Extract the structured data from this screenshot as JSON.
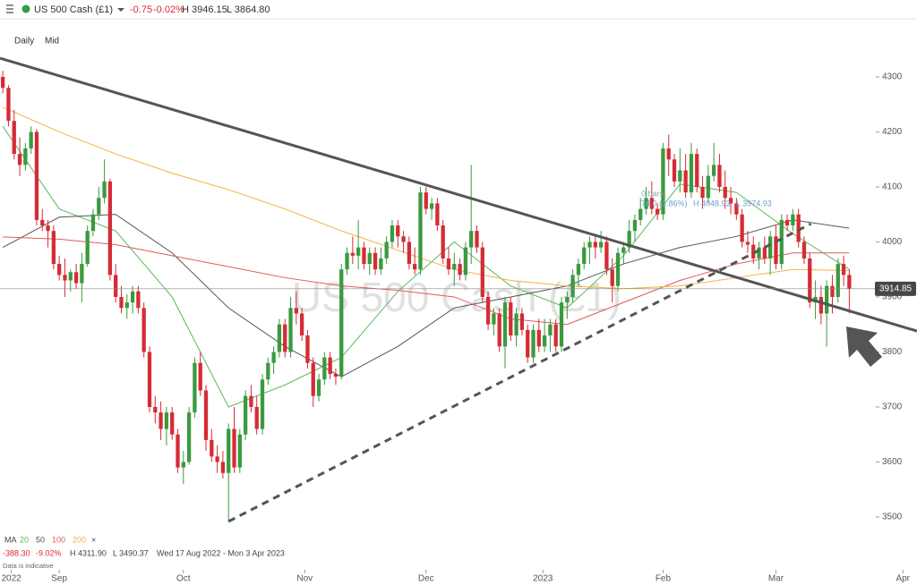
{
  "header": {
    "symbol": "US 500 Cash (£1)",
    "change": "-0.75",
    "change_pct": "-0.02%",
    "high": "H 3946.15",
    "low": "L 3864.80"
  },
  "chart_data": {
    "type": "candlestick",
    "interval": "Daily",
    "price_type": "Mid",
    "watermark": "US 500 Cash (£1)",
    "up_color": "#3a9a3e",
    "down_color": "#d62b35",
    "x": [
      0,
      1,
      2,
      3,
      4,
      5,
      6,
      7,
      8,
      9,
      10,
      11,
      12,
      13,
      14,
      15,
      16,
      17,
      18,
      19,
      20,
      21,
      22,
      23,
      24,
      25,
      26,
      27,
      28,
      29,
      30,
      31,
      32,
      33,
      34,
      35,
      36,
      37,
      38,
      39,
      40,
      41,
      42,
      43,
      44,
      45,
      46,
      47,
      48,
      49,
      50,
      51,
      52,
      53,
      54,
      55,
      56,
      57,
      58,
      59,
      60,
      61,
      62,
      63,
      64,
      65,
      66,
      67,
      68,
      69,
      70,
      71,
      72,
      73,
      74,
      75,
      76,
      77,
      78,
      79,
      80,
      81,
      82,
      83,
      84,
      85,
      86,
      87,
      88,
      89,
      90,
      91,
      92,
      93,
      94,
      95,
      96,
      97,
      98,
      99,
      100,
      101,
      102,
      103,
      104,
      105,
      106,
      107,
      108,
      109,
      110,
      111,
      112,
      113,
      114,
      115,
      116,
      117,
      118,
      119,
      120,
      121,
      122,
      123,
      124,
      125,
      126,
      127,
      128,
      129,
      130,
      131,
      132,
      133,
      134,
      135,
      136,
      137,
      138,
      139,
      140,
      141,
      142,
      143,
      144,
      145,
      146,
      147,
      148,
      149,
      150
    ],
    "open": [
      4300,
      4280,
      4220,
      4160,
      4140,
      4170,
      4200,
      4040,
      4030,
      4020,
      3960,
      3940,
      3930,
      3945,
      3925,
      3960,
      4020,
      4050,
      4080,
      4110,
      3940,
      3900,
      3880,
      3890,
      3910,
      3880,
      3800,
      3700,
      3690,
      3660,
      3690,
      3650,
      3590,
      3600,
      3690,
      3780,
      3730,
      3640,
      3610,
      3600,
      3580,
      3660,
      3590,
      3650,
      3720,
      3700,
      3660,
      3750,
      3780,
      3800,
      3850,
      3800,
      3880,
      3870,
      3830,
      3780,
      3720,
      3750,
      3790,
      3760,
      3755,
      3950,
      3980,
      3975,
      3990,
      3960,
      3980,
      3950,
      3970,
      4000,
      4030,
      4010,
      4000,
      3960,
      3950,
      4090,
      4060,
      4070,
      4030,
      3970,
      3950,
      3960,
      3940,
      3990,
      4020,
      3990,
      3900,
      3850,
      3870,
      3810,
      3890,
      3830,
      3870,
      3840,
      3790,
      3840,
      3810,
      3830,
      3850,
      3810,
      3890,
      3900,
      3940,
      3960,
      3990,
      4000,
      3990,
      4000,
      3950,
      3920,
      3980,
      3990,
      4020,
      4040,
      4060,
      4080,
      4060,
      4050,
      4170,
      4150,
      4110,
      4130,
      4090,
      4160,
      4100,
      4080,
      4120,
      4140,
      4100,
      4080,
      4070,
      4050,
      4000,
      3995,
      3970,
      3990,
      3970,
      4010,
      3960,
      4040,
      4030,
      4050,
      4000,
      3970,
      3890,
      3900,
      3870,
      3920,
      3900,
      3960,
      3940
    ],
    "high": [
      4311,
      4285,
      4240,
      4190,
      4180,
      4210,
      4205,
      4060,
      4040,
      4030,
      3975,
      3970,
      3950,
      3960,
      3980,
      4030,
      4060,
      4100,
      4150,
      4115,
      3960,
      3920,
      3905,
      3920,
      3920,
      3890,
      3810,
      3720,
      3710,
      3700,
      3700,
      3660,
      3620,
      3700,
      3790,
      3800,
      3740,
      3660,
      3630,
      3620,
      3670,
      3700,
      3660,
      3730,
      3740,
      3720,
      3760,
      3790,
      3810,
      3860,
      3860,
      3900,
      3910,
      3880,
      3840,
      3790,
      3760,
      3800,
      3800,
      3770,
      3960,
      3990,
      4010,
      4040,
      4000,
      3990,
      3990,
      3990,
      4010,
      4040,
      4040,
      4020,
      4010,
      3990,
      4100,
      4100,
      4080,
      4080,
      4040,
      3990,
      3980,
      3970,
      4000,
      4140,
      4030,
      4000,
      3910,
      3880,
      3880,
      3900,
      3900,
      3880,
      3880,
      3850,
      3850,
      3860,
      3860,
      3860,
      3860,
      3900,
      3910,
      3950,
      3970,
      4000,
      4010,
      4010,
      4020,
      4010,
      3970,
      3990,
      4000,
      4040,
      4050,
      4080,
      4100,
      4110,
      4070,
      4180,
      4195,
      4160,
      4170,
      4160,
      4180,
      4170,
      4120,
      4140,
      4180,
      4160,
      4130,
      4100,
      4080,
      4060,
      4020,
      4010,
      4000,
      4010,
      4020,
      4030,
      4050,
      4050,
      4060,
      4060,
      4010,
      3980,
      3930,
      3920,
      3930,
      3940,
      3970,
      3975,
      3950
    ],
    "low": [
      4270,
      4210,
      4150,
      4120,
      4130,
      4160,
      4030,
      4020,
      3990,
      3950,
      3930,
      3900,
      3910,
      3915,
      3890,
      3955,
      4010,
      4040,
      4070,
      3930,
      3890,
      3870,
      3860,
      3870,
      3870,
      3790,
      3690,
      3670,
      3640,
      3630,
      3640,
      3580,
      3560,
      3595,
      3680,
      3720,
      3620,
      3600,
      3580,
      3570,
      3491,
      3580,
      3580,
      3640,
      3690,
      3650,
      3650,
      3740,
      3760,
      3790,
      3790,
      3790,
      3850,
      3820,
      3770,
      3700,
      3710,
      3740,
      3750,
      3740,
      3750,
      3940,
      3960,
      3950,
      3950,
      3940,
      3940,
      3940,
      3960,
      3990,
      3990,
      3980,
      3950,
      3940,
      3940,
      4050,
      4040,
      4020,
      3960,
      3940,
      3920,
      3930,
      3930,
      3960,
      3980,
      3890,
      3840,
      3830,
      3800,
      3770,
      3820,
      3810,
      3830,
      3780,
      3780,
      3800,
      3800,
      3800,
      3800,
      3800,
      3860,
      3890,
      3920,
      3950,
      3960,
      3970,
      3980,
      3940,
      3890,
      3910,
      3960,
      3980,
      4000,
      4030,
      4050,
      4050,
      4040,
      4040,
      4120,
      4100,
      4090,
      4080,
      4080,
      4090,
      4060,
      4070,
      4110,
      4090,
      4060,
      4050,
      4040,
      3990,
      3980,
      3960,
      3950,
      3960,
      3940,
      3950,
      3950,
      4020,
      4020,
      3990,
      3960,
      3880,
      3860,
      3850,
      3810,
      3870,
      3890,
      3920,
      3870
    ],
    "close": [
      4280,
      4220,
      4160,
      4140,
      4170,
      4200,
      4040,
      4030,
      4020,
      3960,
      3940,
      3930,
      3945,
      3925,
      3960,
      4020,
      4050,
      4080,
      4110,
      3940,
      3900,
      3880,
      3890,
      3910,
      3880,
      3800,
      3700,
      3690,
      3660,
      3690,
      3650,
      3590,
      3600,
      3690,
      3780,
      3730,
      3640,
      3610,
      3600,
      3580,
      3660,
      3590,
      3650,
      3720,
      3700,
      3660,
      3750,
      3780,
      3800,
      3850,
      3800,
      3880,
      3870,
      3830,
      3780,
      3720,
      3750,
      3790,
      3760,
      3755,
      3950,
      3980,
      3975,
      3990,
      3960,
      3980,
      3950,
      3970,
      4000,
      4030,
      4010,
      4000,
      3960,
      3950,
      4090,
      4060,
      4070,
      4030,
      3970,
      3950,
      3960,
      3940,
      3990,
      4020,
      3990,
      3900,
      3850,
      3870,
      3810,
      3890,
      3830,
      3870,
      3840,
      3790,
      3840,
      3810,
      3830,
      3850,
      3810,
      3890,
      3900,
      3940,
      3960,
      3990,
      4000,
      3990,
      4000,
      3950,
      3920,
      3980,
      3990,
      4020,
      4040,
      4060,
      4080,
      4060,
      4050,
      4170,
      4150,
      4110,
      4130,
      4090,
      4160,
      4100,
      4080,
      4120,
      4140,
      4100,
      4080,
      4070,
      4050,
      4000,
      3995,
      3970,
      3990,
      3970,
      4010,
      3960,
      4040,
      4030,
      4050,
      4000,
      3970,
      3890,
      3900,
      3870,
      3920,
      3900,
      3960,
      3940,
      3914.85
    ],
    "last_price": 3914.85,
    "xlim": [
      -0.5,
      162
    ],
    "xticks": [
      {
        "value": 1.5,
        "label": "2022"
      },
      {
        "value": 10,
        "label": "Sep"
      },
      {
        "value": 32,
        "label": "Oct"
      },
      {
        "value": 53.5,
        "label": "Nov"
      },
      {
        "value": 75,
        "label": "Dec"
      },
      {
        "value": 95.7,
        "label": "2023"
      },
      {
        "value": 117,
        "label": "Feb"
      },
      {
        "value": 137,
        "label": "Mar"
      },
      {
        "value": 159.5,
        "label": "Apr"
      }
    ],
    "ylim": [
      3404,
      4391
    ],
    "yticks": [
      3500,
      3600,
      3700,
      3800,
      3900,
      4000,
      4100,
      4200,
      4300
    ],
    "overlay_label": "MA",
    "overlays": [
      {
        "name": "20",
        "color": "#5cb85c",
        "x": [
          0,
          10,
          20,
          30,
          40,
          50,
          60,
          70,
          80,
          90,
          100,
          110,
          120,
          130,
          140,
          150
        ],
        "values": [
          4210,
          4060,
          4020,
          3900,
          3700,
          3740,
          3790,
          3910,
          4000,
          3920,
          3880,
          3975,
          4105,
          4090,
          4015,
          3950
        ]
      },
      {
        "name": "50",
        "color": "#555555",
        "x": [
          0,
          10,
          20,
          30,
          40,
          50,
          60,
          70,
          80,
          90,
          100,
          110,
          120,
          130,
          140,
          150
        ],
        "values": [
          3990,
          4045,
          4050,
          3980,
          3880,
          3810,
          3755,
          3810,
          3880,
          3900,
          3920,
          3960,
          3990,
          4010,
          4040,
          4025
        ]
      },
      {
        "name": "100",
        "color": "#e05a5a",
        "x": [
          0,
          10,
          20,
          30,
          40,
          50,
          60,
          70,
          80,
          90,
          100,
          110,
          120,
          130,
          140,
          150
        ],
        "values": [
          4009,
          4005,
          3995,
          3975,
          3955,
          3935,
          3920,
          3912,
          3900,
          3860,
          3850,
          3890,
          3930,
          3960,
          3980,
          3980
        ]
      },
      {
        "name": "200",
        "color": "#f5b041",
        "x": [
          0,
          10,
          20,
          30,
          40,
          50,
          60,
          70,
          80,
          90,
          100,
          110,
          120,
          130,
          140,
          150
        ],
        "values": [
          4245,
          4200,
          4160,
          4125,
          4095,
          4060,
          4020,
          3985,
          3950,
          3930,
          3920,
          3915,
          3920,
          3935,
          3950,
          3948
        ]
      }
    ],
    "overlay_remove": "×",
    "trendlines": [
      {
        "style": "solid",
        "color": "#555555",
        "x": [
          -0.5,
          162
        ],
        "values": [
          4334,
          3838
        ]
      },
      {
        "style": "dashed",
        "color": "#555555",
        "x": [
          40,
          143.2
        ],
        "values": [
          3492,
          4033
        ]
      }
    ],
    "measure": {
      "bars": "0 bars",
      "change": "74.0 (1.86%)",
      "high": "H 4048.93",
      "low": "L 3974.93"
    },
    "summary": {
      "change": "-388.30",
      "change_pct": "-9.02%",
      "high": "H 4311.90",
      "low": "L 3490.37",
      "range": "Wed 17 Aug 2022 - Mon 3 Apr 2023",
      "note": "Data is indicative"
    }
  }
}
